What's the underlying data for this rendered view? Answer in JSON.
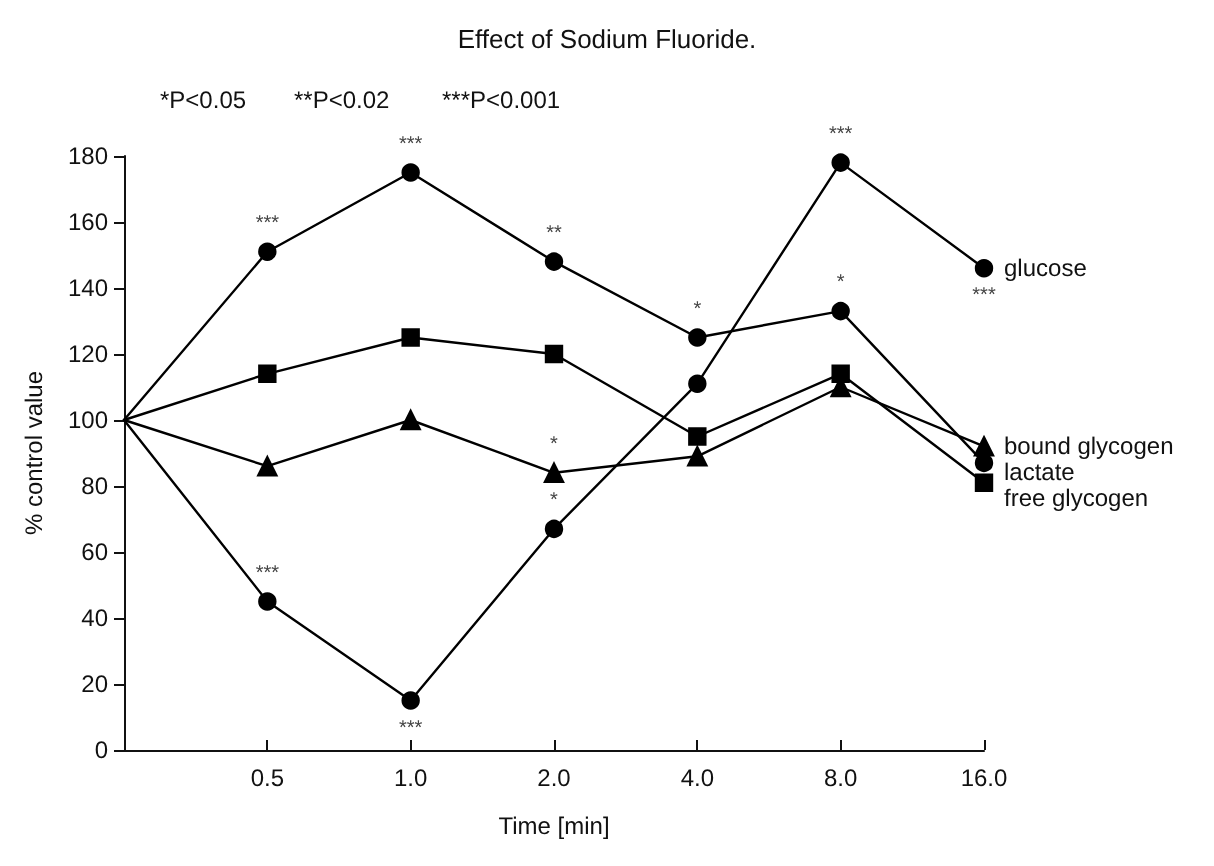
{
  "chart_data": {
    "type": "line",
    "title": "Effect of Sodium Fluoride.",
    "xlabel": "Time [min]",
    "ylabel": "% control value",
    "categories": [
      null,
      "0.5",
      "1.0",
      "2.0",
      "4.0",
      "8.0",
      "16.0"
    ],
    "series": [
      {
        "name": "glucose",
        "color": "#000000",
        "marker": "circle",
        "values": [
          100,
          45,
          15,
          67,
          111,
          178,
          146
        ]
      },
      {
        "name": "bound glycogen",
        "color": "#000000",
        "marker": "triangle",
        "values": [
          100,
          86,
          100,
          84,
          89,
          110,
          92
        ]
      },
      {
        "name": "lactate",
        "color": "#000000",
        "marker": "circle",
        "values": [
          100,
          151,
          175,
          148,
          125,
          133,
          87
        ]
      },
      {
        "name": "free glycogen",
        "color": "#000000",
        "marker": "square",
        "values": [
          100,
          114,
          125,
          120,
          95,
          114,
          81
        ]
      }
    ],
    "ylim": [
      0,
      180
    ],
    "yticks": [
      0,
      20,
      40,
      60,
      80,
      100,
      120,
      140,
      160,
      180
    ],
    "grid": false,
    "legend": false,
    "line_style": "solid",
    "annotations": [
      "*P<0.05",
      "**P<0.02",
      "***P<0.001",
      {
        "text": "***",
        "x": "0.5",
        "y": 151
      },
      {
        "text": "***",
        "x": "1.0",
        "y": 175
      },
      {
        "text": "**",
        "x": "2.0",
        "y": 148
      },
      {
        "text": "*",
        "x": "4.0",
        "y": 125
      },
      {
        "text": "*",
        "x": "8.0",
        "y": 133
      },
      {
        "text": "***",
        "x": "0.5",
        "y": 45
      },
      {
        "text": "***",
        "x": "1.0",
        "y": 15
      },
      {
        "text": "*",
        "x": "2.0",
        "y": 67
      },
      {
        "text": "***",
        "x": "8.0",
        "y": 178
      },
      {
        "text": "***",
        "x": "16.0",
        "y": 146
      },
      {
        "text": "*",
        "x": "2.0",
        "y": 84
      }
    ]
  }
}
